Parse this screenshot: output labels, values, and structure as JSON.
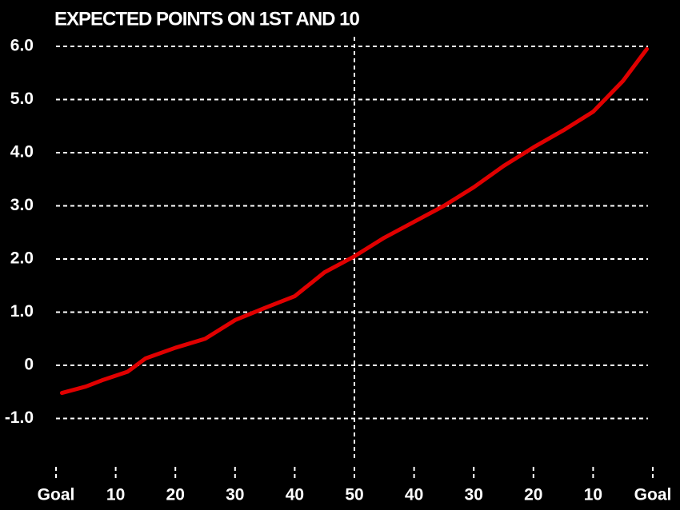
{
  "chart_data": {
    "type": "line",
    "title": "EXPECTED POINTS ON 1ST AND 10",
    "x": [
      1,
      5,
      8,
      12,
      15,
      20,
      25,
      30,
      35,
      40,
      45,
      50,
      55,
      60,
      65,
      70,
      75,
      80,
      85,
      90,
      95,
      99
    ],
    "series": [
      {
        "color": "#e00000",
        "values": [
          -0.52,
          -0.4,
          -0.27,
          -0.12,
          0.13,
          0.33,
          0.5,
          0.85,
          1.08,
          1.3,
          1.75,
          2.05,
          2.4,
          2.7,
          3.0,
          3.35,
          3.75,
          4.1,
          4.42,
          4.77,
          5.35,
          5.95
        ]
      }
    ],
    "xlim": [
      0,
      100
    ],
    "xticks": [
      {
        "value": 0,
        "label": "Goal"
      },
      10,
      20,
      30,
      40,
      50,
      {
        "value": 60,
        "label": "40"
      },
      {
        "value": 70,
        "label": "30"
      },
      {
        "value": 80,
        "label": "20"
      },
      {
        "value": 90,
        "label": "10"
      },
      {
        "value": 100,
        "label": "Goal"
      }
    ],
    "ylim": [
      -2,
      6
    ],
    "yticks": [
      {
        "value": -1,
        "label": "-1.0"
      },
      0,
      {
        "value": 1,
        "label": "1.0"
      },
      {
        "value": 2,
        "label": "2.0"
      },
      {
        "value": 3,
        "label": "3.0"
      },
      {
        "value": 4,
        "label": "4.0"
      },
      {
        "value": 5,
        "label": "5.0"
      },
      {
        "value": 6,
        "label": "6.0"
      }
    ],
    "grid": true
  }
}
